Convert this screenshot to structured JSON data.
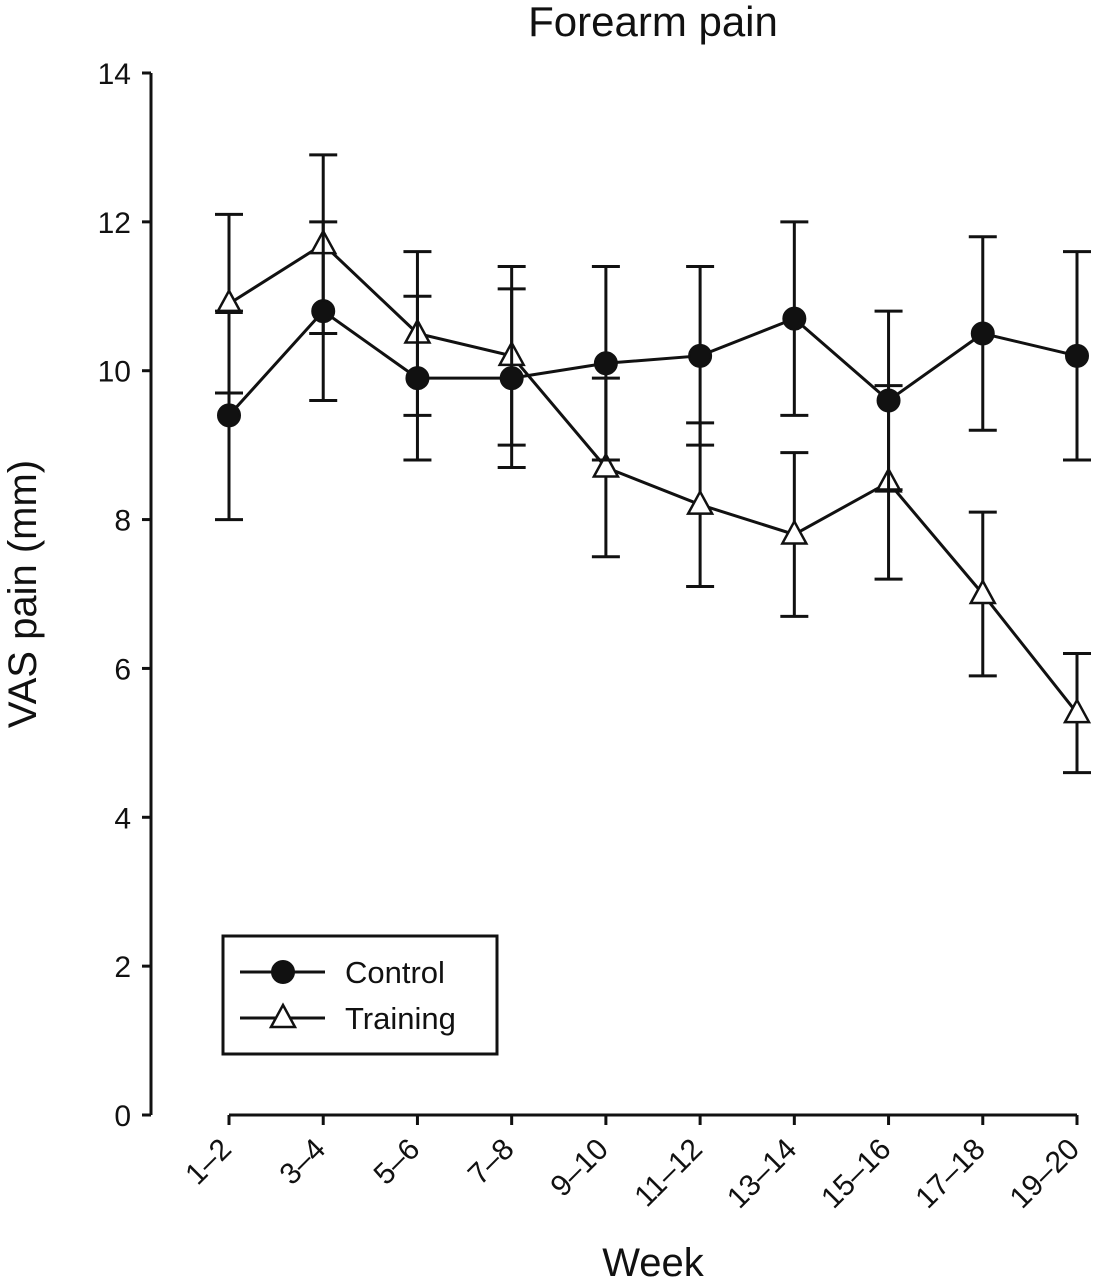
{
  "chart_data": {
    "type": "line",
    "title": "Forearm pain",
    "xlabel": "Week",
    "ylabel": "VAS pain (mm)",
    "ylim": [
      0,
      14
    ],
    "yticks": [
      0,
      2,
      4,
      6,
      8,
      10,
      12,
      14
    ],
    "categories": [
      "1–2",
      "3–4",
      "5–6",
      "7–8",
      "9–10",
      "11–12",
      "13–14",
      "15–16",
      "17–18",
      "19–20"
    ],
    "grid": false,
    "legend_position": "bottom-left",
    "series": [
      {
        "name": "Control",
        "marker": "filled-circle",
        "color": "#111111",
        "values": [
          9.4,
          10.8,
          9.9,
          9.9,
          10.1,
          10.2,
          10.7,
          9.6,
          10.5,
          10.2
        ],
        "error": [
          1.4,
          1.2,
          1.1,
          1.2,
          1.3,
          1.2,
          1.3,
          1.2,
          1.3,
          1.4
        ]
      },
      {
        "name": "Training",
        "marker": "open-triangle",
        "color": "#111111",
        "values": [
          10.9,
          11.7,
          10.5,
          10.2,
          8.7,
          8.2,
          7.8,
          8.5,
          7.0,
          5.4
        ],
        "error": [
          1.2,
          1.2,
          1.1,
          1.2,
          1.2,
          1.1,
          1.1,
          1.3,
          1.1,
          0.8
        ]
      }
    ]
  }
}
